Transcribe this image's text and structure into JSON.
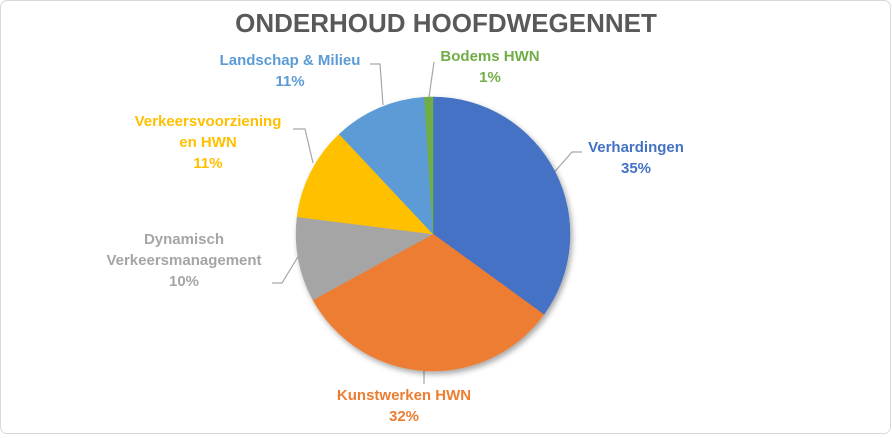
{
  "theme": {
    "background": "#FFFFFF",
    "frame_border_color": "#D9D9D9",
    "title_color": "#595959",
    "leader_line_color": "#A6A6A6"
  },
  "chart_data": {
    "type": "pie",
    "title": "ONDERHOUD HOOFDWEGENNET",
    "direction": "clockwise",
    "start_angle_deg": 0,
    "legend": "none",
    "label_style": "outside-with-leader-lines",
    "slices": [
      {
        "label": "Verhardingen",
        "label_lines": [
          "Verhardingen"
        ],
        "pct_label": "35%",
        "value": 35,
        "color": "#4472C4"
      },
      {
        "label": "Kunstwerken HWN",
        "label_lines": [
          "Kunstwerken HWN"
        ],
        "pct_label": "32%",
        "value": 32,
        "color": "#ED7D31"
      },
      {
        "label": "Dynamisch Verkeersmanagement",
        "label_lines": [
          "Dynamisch",
          "Verkeersmanagement"
        ],
        "pct_label": "10%",
        "value": 10,
        "color": "#A5A5A5"
      },
      {
        "label": "Verkeersvoorziening en HWN",
        "label_lines": [
          "Verkeersvoorziening",
          "en HWN"
        ],
        "pct_label": "11%",
        "value": 11,
        "color": "#FFC000"
      },
      {
        "label": "Landschap & Milieu",
        "label_lines": [
          "Landschap & Milieu"
        ],
        "pct_label": "11%",
        "value": 11,
        "color": "#5B9BD5"
      },
      {
        "label": "Bodems HWN",
        "label_lines": [
          "Bodems HWN"
        ],
        "pct_label": "1%",
        "value": 1,
        "color": "#70AD47"
      }
    ]
  }
}
